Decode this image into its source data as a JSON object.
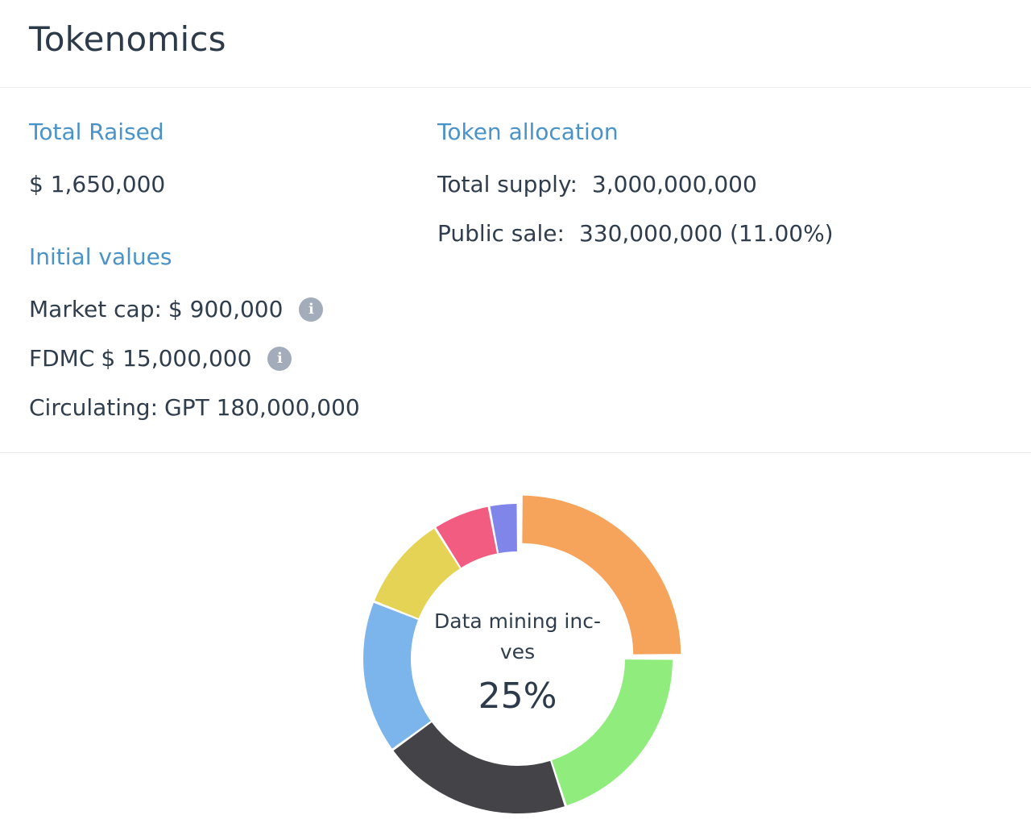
{
  "header": {
    "title": "Tokenomics"
  },
  "total_raised": {
    "heading": "Total Raised",
    "value": "$ 1,650,000"
  },
  "initial_values": {
    "heading": "Initial values",
    "market_cap_label": "Market cap:",
    "market_cap_value": "$ 900,000",
    "fdmc_label": "FDMC",
    "fdmc_value": "$ 15,000,000",
    "circulating_label": "Circulating:",
    "circulating_value": "GPT 180,000,000",
    "info_glyph": "i"
  },
  "token_allocation": {
    "heading": "Token allocation",
    "total_supply_label": "Total supply:",
    "total_supply_value": "3,000,000,000",
    "public_sale_label": "Public sale:",
    "public_sale_value": "330,000,000 (11.00%)"
  },
  "chart_data": {
    "type": "pie",
    "variant": "donut",
    "highlighted": {
      "label": "Data mining inc-\nves",
      "value_text": "25%"
    },
    "slices": [
      {
        "value": 25,
        "color": "#f6a35c"
      },
      {
        "value": 20,
        "color": "#90ed7d"
      },
      {
        "value": 20,
        "color": "#434348"
      },
      {
        "value": 16,
        "color": "#7cb5ec"
      },
      {
        "value": 10,
        "color": "#e4d354"
      },
      {
        "value": 6,
        "color": "#f15c80"
      },
      {
        "value": 3,
        "color": "#8085e9"
      }
    ]
  }
}
